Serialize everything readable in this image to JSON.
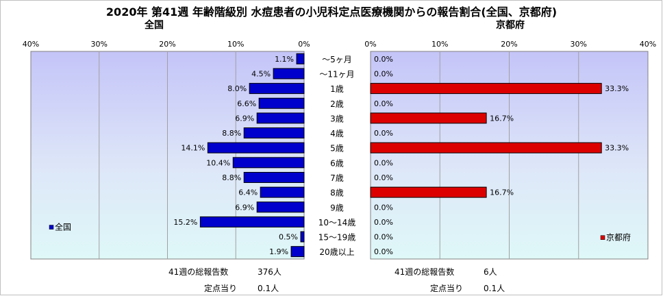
{
  "title": "2020年 第41週 年齢階級別 水痘患者の小児科定点医療機関からの報告割合(全国、京都府)",
  "colors": {
    "national_bar": "#0000cc",
    "kyoto_bar": "#dd0000"
  },
  "chart_data": [
    {
      "type": "bar",
      "orientation": "horizontal",
      "direction": "right-to-left",
      "title": "全国",
      "categories": [
        "～5ヶ月",
        "～11ヶ月",
        "1歳",
        "2歳",
        "3歳",
        "4歳",
        "5歳",
        "6歳",
        "7歳",
        "8歳",
        "9歳",
        "10～14歳",
        "15～19歳",
        "20歳以上"
      ],
      "series": [
        {
          "name": "全国",
          "values": [
            1.1,
            4.5,
            8.0,
            6.6,
            6.9,
            8.8,
            14.1,
            10.4,
            8.8,
            6.4,
            6.9,
            15.2,
            0.5,
            1.9
          ],
          "value_labels": [
            "1.1%",
            "4.5%",
            "8.0%",
            "6.6%",
            "6.9%",
            "8.8%",
            "14.1%",
            "10.4%",
            "8.8%",
            "6.4%",
            "6.9%",
            "15.2%",
            "0.5%",
            "1.9%"
          ]
        }
      ],
      "xlim": [
        0,
        40
      ],
      "ticks": [
        40,
        30,
        20,
        10,
        0
      ],
      "tick_labels": [
        "40%",
        "30%",
        "20%",
        "10%",
        "0%"
      ],
      "grid": true,
      "legend_position": "bottom-left",
      "legend_label": "全国",
      "footer": {
        "total_label": "41週の総報告数",
        "total_value": "376人",
        "per_label": "定点当り",
        "per_value": "0.1人"
      }
    },
    {
      "type": "bar",
      "orientation": "horizontal",
      "direction": "left-to-right",
      "title": "京都府",
      "categories": [
        "～5ヶ月",
        "～11ヶ月",
        "1歳",
        "2歳",
        "3歳",
        "4歳",
        "5歳",
        "6歳",
        "7歳",
        "8歳",
        "9歳",
        "10～14歳",
        "15～19歳",
        "20歳以上"
      ],
      "series": [
        {
          "name": "京都府",
          "values": [
            0.0,
            0.0,
            33.3,
            0.0,
            16.7,
            0.0,
            33.3,
            0.0,
            0.0,
            16.7,
            0.0,
            0.0,
            0.0,
            0.0
          ],
          "value_labels": [
            "0.0%",
            "0.0%",
            "33.3%",
            "0.0%",
            "16.7%",
            "0.0%",
            "33.3%",
            "0.0%",
            "0.0%",
            "16.7%",
            "0.0%",
            "0.0%",
            "0.0%",
            "0.0%"
          ]
        }
      ],
      "xlim": [
        0,
        40
      ],
      "ticks": [
        0,
        10,
        20,
        30,
        40
      ],
      "tick_labels": [
        "0%",
        "10%",
        "20%",
        "30%",
        "40%"
      ],
      "grid": true,
      "legend_position": "bottom-right",
      "legend_label": "京都府",
      "footer": {
        "total_label": "41週の総報告数",
        "total_value": "6人",
        "per_label": "定点当り",
        "per_value": "0.1人"
      }
    }
  ]
}
